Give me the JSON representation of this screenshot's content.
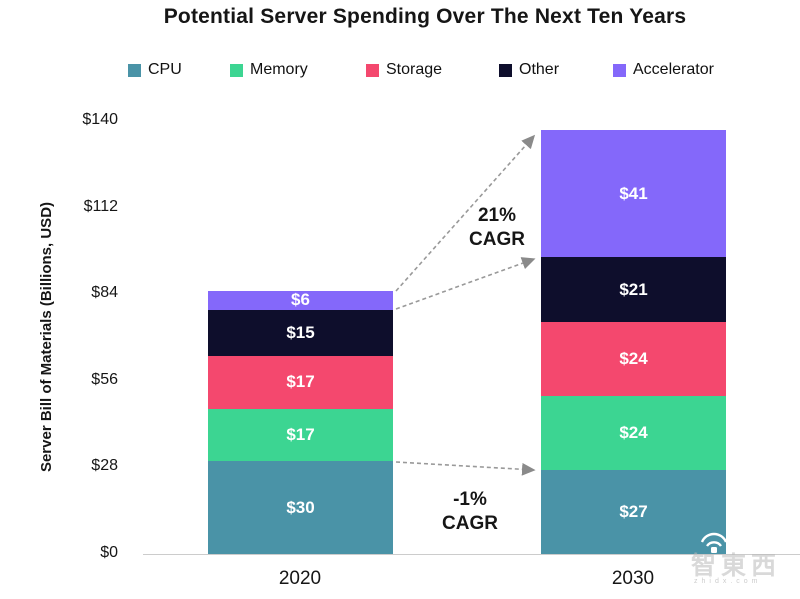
{
  "title": "Potential Server Spending Over The Next Ten Years",
  "chart_data": {
    "type": "bar",
    "stacked": true,
    "title": "Potential Server Spending Over The Next Ten Years",
    "xlabel": "",
    "ylabel": "Server Bill of Materials (Billions, USD)",
    "categories": [
      "2020",
      "2030"
    ],
    "series": [
      {
        "name": "CPU",
        "color": "#4A93A7",
        "values": [
          30,
          27
        ],
        "labels": [
          "$30",
          "$27"
        ]
      },
      {
        "name": "Memory",
        "color": "#3CD592",
        "values": [
          17,
          24
        ],
        "labels": [
          "$17",
          "$24"
        ]
      },
      {
        "name": "Storage",
        "color": "#F4486E",
        "values": [
          17,
          24
        ],
        "labels": [
          "$17",
          "$24"
        ]
      },
      {
        "name": "Other",
        "color": "#0E0E2C",
        "values": [
          15,
          21
        ],
        "labels": [
          "$15",
          "$21"
        ]
      },
      {
        "name": "Accelerator",
        "color": "#8468FA",
        "values": [
          6,
          41
        ],
        "labels": [
          "$6",
          "$41"
        ]
      }
    ],
    "totals": [
      85,
      137
    ],
    "ylim": [
      0,
      140
    ],
    "yticks": [
      {
        "label": "$0",
        "value": 0
      },
      {
        "label": "$28",
        "value": 28
      },
      {
        "label": "$56",
        "value": 56
      },
      {
        "label": "$84",
        "value": 84
      },
      {
        "label": "$112",
        "value": 112
      },
      {
        "label": "$140",
        "value": 140
      }
    ],
    "grid": false,
    "legend_position": "top",
    "annotations": [
      {
        "text": "21% CAGR"
      },
      {
        "text": "-1% CAGR"
      }
    ]
  },
  "annotations": {
    "growth": {
      "line1": "21%",
      "line2": "CAGR"
    },
    "decline": {
      "line1": "-1%",
      "line2": "CAGR"
    }
  },
  "watermark": {
    "brand": "智東西",
    "domain": "zhidx.com"
  }
}
